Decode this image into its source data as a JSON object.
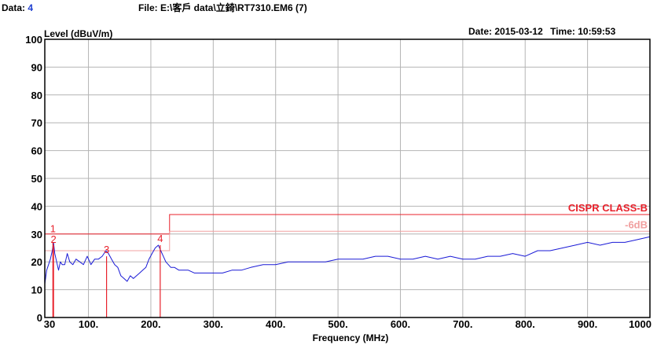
{
  "header": {
    "data_label": "Data:",
    "data_value": "4",
    "file_label": "File:",
    "file_path": "E:\\客戶 data\\立錡\\RT7310.EM6  (7)",
    "date_label": "Date:",
    "date_value": "2015-03-12",
    "time_label": "Time:",
    "time_value": "10:59:53"
  },
  "colors": {
    "trace": "#1a1ad6",
    "limit": "#e8212b",
    "limit_minus6": "#f0a0a0",
    "grid": "#b4b4b4",
    "marker": "#e8212b"
  },
  "chart_data": {
    "type": "line",
    "ylabel": "Level (dBuV/m)",
    "xlabel": "Frequency (MHz)",
    "xlim": [
      30,
      1000
    ],
    "ylim": [
      0,
      100
    ],
    "yticks": [
      0,
      10,
      20,
      30,
      40,
      50,
      60,
      70,
      80,
      90,
      100
    ],
    "xticks": [
      {
        "value": 30,
        "label": "30"
      },
      {
        "value": 100,
        "label": "100."
      },
      {
        "value": 200,
        "label": "200."
      },
      {
        "value": 300,
        "label": "300."
      },
      {
        "value": 400,
        "label": "400."
      },
      {
        "value": 500,
        "label": "500."
      },
      {
        "value": 600,
        "label": "600."
      },
      {
        "value": 700,
        "label": "700."
      },
      {
        "value": 800,
        "label": "800."
      },
      {
        "value": 900,
        "label": "900."
      },
      {
        "value": 1000,
        "label": "1000"
      }
    ],
    "grid": true,
    "limits": [
      {
        "name": "CISPR CLASS-B",
        "segments": [
          [
            30,
            230,
            30
          ],
          [
            230,
            1000,
            37
          ]
        ]
      },
      {
        "name": "-6dB",
        "segments": [
          [
            30,
            230,
            24
          ],
          [
            230,
            1000,
            31
          ]
        ]
      }
    ],
    "markers": [
      {
        "label": "1",
        "x": 43,
        "y": 27
      },
      {
        "label": "2",
        "x": 44,
        "y": 26
      },
      {
        "label": "3",
        "x": 129,
        "y": 22
      },
      {
        "label": "4",
        "x": 215,
        "y": 26
      }
    ],
    "series": [
      {
        "x": [
          30,
          33,
          36,
          39,
          42,
          44,
          46,
          49,
          52,
          55,
          58,
          62,
          66,
          70,
          75,
          80,
          86,
          92,
          98,
          104,
          110,
          116,
          122,
          128,
          132,
          137,
          142,
          147,
          152,
          157,
          162,
          167,
          172,
          177,
          182,
          187,
          192,
          197,
          202,
          207,
          212,
          216,
          220,
          224,
          228,
          232,
          238,
          245,
          252,
          260,
          270,
          280,
          290,
          300,
          315,
          330,
          345,
          360,
          380,
          400,
          420,
          440,
          460,
          480,
          500,
          520,
          540,
          560,
          580,
          600,
          620,
          640,
          660,
          680,
          700,
          720,
          740,
          760,
          780,
          800,
          820,
          840,
          860,
          880,
          900,
          920,
          940,
          960,
          980,
          1000
        ],
        "values": [
          12,
          17,
          19,
          21,
          24,
          27,
          23,
          20,
          17,
          20,
          19,
          19,
          23,
          20,
          19,
          21,
          20,
          19,
          22,
          19,
          21,
          21,
          22,
          24,
          23,
          21,
          19,
          18,
          15,
          14,
          13,
          15,
          14,
          15,
          16,
          17,
          18,
          21,
          23,
          25,
          26,
          24,
          22,
          20,
          19,
          18,
          18,
          17,
          17,
          17,
          16,
          16,
          16,
          16,
          16,
          17,
          17,
          18,
          19,
          19,
          20,
          20,
          20,
          20,
          21,
          21,
          21,
          22,
          22,
          21,
          21,
          22,
          21,
          22,
          21,
          21,
          22,
          22,
          23,
          22,
          24,
          24,
          25,
          26,
          27,
          26,
          27,
          27,
          28,
          29
        ]
      }
    ]
  }
}
